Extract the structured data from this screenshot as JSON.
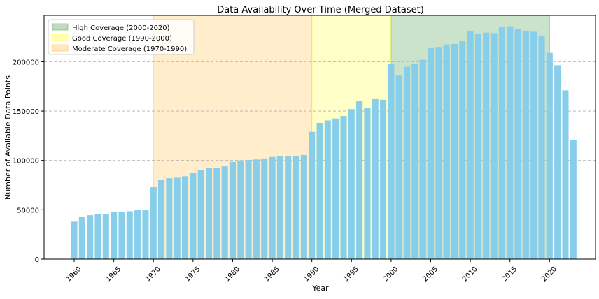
{
  "chart_data": {
    "type": "bar",
    "title": "Data Availability Over Time (Merged Dataset)",
    "xlabel": "Year",
    "ylabel": "Number of Available Data Points",
    "ylim": [
      0,
      247000
    ],
    "xlim": [
      1956.2,
      2025.8
    ],
    "grid": "horizontal dashed",
    "legend_position": "top-left",
    "bar_color": "#87CEEB",
    "x": [
      1960,
      1961,
      1962,
      1963,
      1964,
      1965,
      1966,
      1967,
      1968,
      1969,
      1970,
      1971,
      1972,
      1973,
      1974,
      1975,
      1976,
      1977,
      1978,
      1979,
      1980,
      1981,
      1982,
      1983,
      1984,
      1985,
      1986,
      1987,
      1988,
      1989,
      1990,
      1991,
      1992,
      1993,
      1994,
      1995,
      1996,
      1997,
      1998,
      1999,
      2000,
      2001,
      2002,
      2003,
      2004,
      2005,
      2006,
      2007,
      2008,
      2009,
      2010,
      2011,
      2012,
      2013,
      2014,
      2015,
      2016,
      2017,
      2018,
      2019,
      2020,
      2021,
      2022,
      2023
    ],
    "values": [
      38000,
      43000,
      44500,
      46000,
      46000,
      48000,
      48000,
      48500,
      49500,
      50000,
      73500,
      80000,
      82000,
      82500,
      84000,
      87500,
      90000,
      92000,
      92500,
      94000,
      98500,
      100000,
      100500,
      101000,
      102000,
      103500,
      104000,
      104500,
      104000,
      105500,
      129000,
      138000,
      140500,
      142500,
      145000,
      152000,
      160000,
      153000,
      162500,
      161500,
      198000,
      186000,
      195000,
      197500,
      202000,
      214000,
      215000,
      217500,
      218000,
      221000,
      231500,
      228000,
      229500,
      229000,
      235000,
      236000,
      233500,
      231500,
      230500,
      226500,
      209000,
      196500,
      171000,
      121000
    ],
    "shaded_regions": [
      {
        "label": "High Coverage (2000-2020)",
        "start": 2000,
        "end": 2020,
        "color": "#2e8b2e",
        "opacity": 0.25
      },
      {
        "label": "Good Coverage (1990-2000)",
        "start": 1990,
        "end": 2000,
        "color": "#ffff00",
        "opacity": 0.22
      },
      {
        "label": "Moderate Coverage (1970-1990)",
        "start": 1970,
        "end": 1990,
        "color": "#ffa500",
        "opacity": 0.2
      }
    ],
    "x_ticks": [
      1960,
      1965,
      1970,
      1975,
      1980,
      1985,
      1990,
      1995,
      2000,
      2005,
      2010,
      2015,
      2020
    ],
    "y_ticks": [
      0,
      50000,
      100000,
      150000,
      200000
    ]
  }
}
